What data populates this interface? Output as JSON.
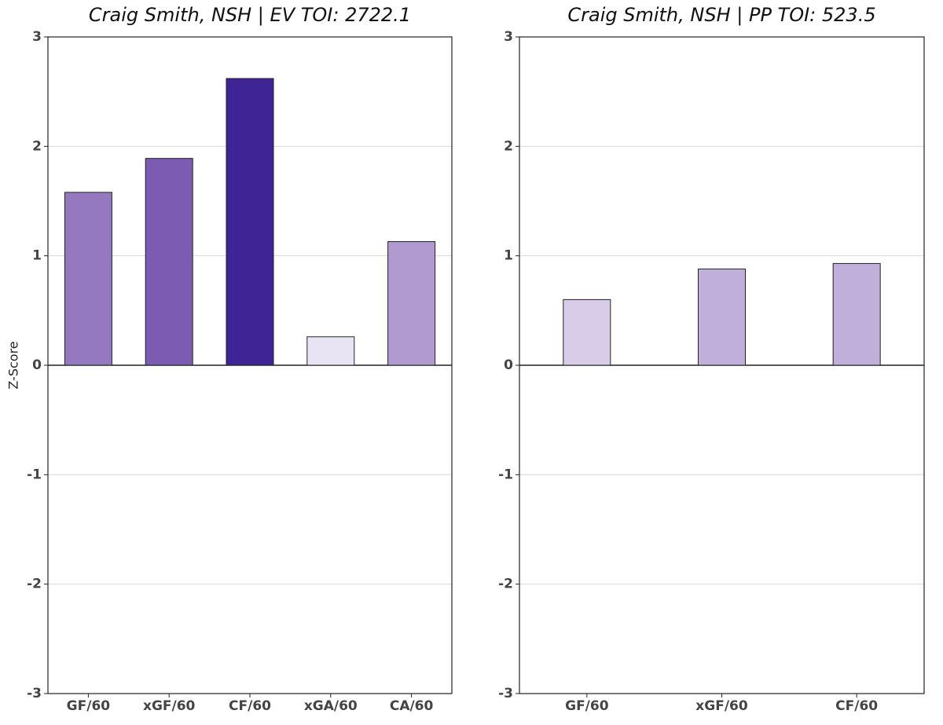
{
  "chart_data": [
    {
      "type": "bar",
      "title": "Craig Smith, NSH  |  EV TOI: 2722.1",
      "ylabel": "Z-Score",
      "categories": [
        "GF/60",
        "xGF/60",
        "CF/60",
        "xGA/60",
        "CA/60"
      ],
      "values": [
        1.58,
        1.89,
        2.62,
        0.26,
        1.13
      ],
      "colors": [
        "#9478c0",
        "#7b5cb2",
        "#3f2496",
        "#e8e4f3",
        "#b09ad0"
      ],
      "ylim": [
        -3,
        3
      ],
      "yticks": [
        -3,
        -2,
        -1,
        0,
        1,
        2,
        3
      ],
      "grid": true
    },
    {
      "type": "bar",
      "title": "Craig Smith, NSH  |  PP TOI: 523.5",
      "categories": [
        "GF/60",
        "xGF/60",
        "CF/60"
      ],
      "values": [
        0.6,
        0.88,
        0.93
      ],
      "colors": [
        "#d9cce8",
        "#bfafda",
        "#bfafda"
      ],
      "ylim": [
        -3,
        3
      ],
      "yticks": [
        -3,
        -2,
        -1,
        0,
        1,
        2,
        3
      ],
      "grid": true
    }
  ]
}
